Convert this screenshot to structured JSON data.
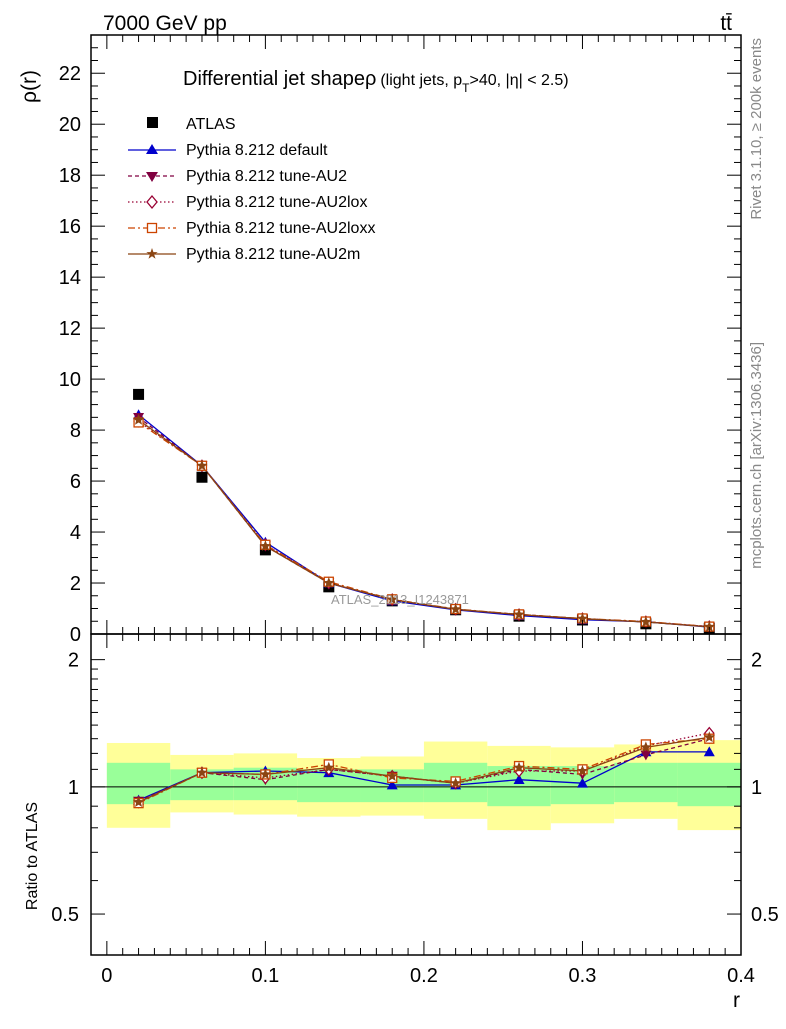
{
  "header": {
    "left": "7000 GeV pp",
    "right": "tt̄"
  },
  "side_labels": {
    "rivet": "Rivet 3.1.10, ≥ 200k events",
    "mcplots": "mcplots.cern.ch [arXiv:1306.3436]"
  },
  "watermark": "ATLAS_2013_I1243871",
  "title_main": "Differential jet shapeρ",
  "title_sub_1": "(light jets, p",
  "title_sub_T": "T",
  "title_sub_2": ">40, |η| < 2.5)",
  "colors": {
    "data": "#000000",
    "default": "#0000cc",
    "au2": "#800040",
    "au2lox": "#990033",
    "au2loxx": "#cc4400",
    "au2m": "#8b4513",
    "band_outer": "#ffff99",
    "band_inner": "#99ff99"
  },
  "chart_data": [
    {
      "type": "line",
      "panel": "main",
      "ylabel": "ρ(r)",
      "xlabel": "",
      "xlim": [
        -0.01,
        0.4
      ],
      "ylim": [
        0,
        23.5
      ],
      "yticks": [
        {
          "v": 0,
          "label": "0"
        },
        {
          "v": 2,
          "label": "2"
        },
        {
          "v": 4,
          "label": "4"
        },
        {
          "v": 6,
          "label": "6"
        },
        {
          "v": 8,
          "label": "8"
        },
        {
          "v": 10,
          "label": "10"
        },
        {
          "v": 12,
          "label": "12"
        },
        {
          "v": 14,
          "label": "14"
        },
        {
          "v": 16,
          "label": "16"
        },
        {
          "v": 18,
          "label": "18"
        },
        {
          "v": 20,
          "label": "20"
        },
        {
          "v": 22,
          "label": "22"
        }
      ],
      "legend_position": "top-left",
      "x": [
        0.02,
        0.06,
        0.1,
        0.14,
        0.18,
        0.22,
        0.26,
        0.3,
        0.34,
        0.38
      ],
      "series": [
        {
          "key": "data",
          "name": "ATLAS",
          "marker": "square",
          "style": "none",
          "values": [
            9.4,
            6.15,
            3.3,
            1.85,
            1.3,
            0.95,
            0.7,
            0.55,
            0.4,
            0.22
          ]
        },
        {
          "key": "default",
          "name": "Pythia 8.212 default",
          "marker": "triangle-up",
          "style": "solid",
          "values": [
            8.6,
            6.6,
            3.6,
            2.0,
            1.3,
            0.95,
            0.72,
            0.56,
            0.48,
            0.27
          ]
        },
        {
          "key": "au2",
          "name": "Pythia 8.212 tune-AU2",
          "marker": "triangle-down",
          "style": "dashed",
          "values": [
            8.5,
            6.6,
            3.45,
            2.0,
            1.35,
            0.97,
            0.77,
            0.6,
            0.47,
            0.29
          ]
        },
        {
          "key": "au2lox",
          "name": "Pythia 8.212 tune-AU2lox",
          "marker": "diamond-open",
          "style": "dotted",
          "values": [
            8.35,
            6.6,
            3.5,
            2.0,
            1.35,
            0.97,
            0.76,
            0.6,
            0.48,
            0.29
          ]
        },
        {
          "key": "au2loxx",
          "name": "Pythia 8.212 tune-AU2loxx",
          "marker": "square-open",
          "style": "dashdot",
          "values": [
            8.3,
            6.6,
            3.5,
            2.05,
            1.36,
            0.98,
            0.77,
            0.61,
            0.49,
            0.29
          ]
        },
        {
          "key": "au2m",
          "name": "Pythia 8.212 tune-AU2m",
          "marker": "star",
          "style": "solid",
          "values": [
            8.4,
            6.6,
            3.45,
            2.0,
            1.35,
            0.97,
            0.76,
            0.6,
            0.47,
            0.28
          ]
        }
      ]
    },
    {
      "type": "line",
      "panel": "ratio",
      "ylabel": "Ratio to ATLAS",
      "xlabel": "r",
      "xlim": [
        -0.01,
        0.4
      ],
      "ylim": [
        0.4,
        2.3
      ],
      "yscale": "log",
      "yticks": [
        {
          "v": 0.5,
          "label": "0.5"
        },
        {
          "v": 1,
          "label": "1"
        },
        {
          "v": 2,
          "label": "2"
        }
      ],
      "xticks": [
        {
          "v": 0,
          "label": "0"
        },
        {
          "v": 0.1,
          "label": "0.1"
        },
        {
          "v": 0.2,
          "label": "0.2"
        },
        {
          "v": 0.3,
          "label": "0.3"
        },
        {
          "v": 0.4,
          "label": "0.4"
        }
      ],
      "reference_line": 1,
      "bins": [
        {
          "x0": 0.0,
          "x1": 0.04,
          "outer": [
            0.8,
            1.27
          ],
          "inner": [
            0.91,
            1.14
          ]
        },
        {
          "x0": 0.04,
          "x1": 0.08,
          "outer": [
            0.87,
            1.19
          ],
          "inner": [
            0.93,
            1.1
          ]
        },
        {
          "x0": 0.08,
          "x1": 0.12,
          "outer": [
            0.86,
            1.2
          ],
          "inner": [
            0.93,
            1.11
          ]
        },
        {
          "x0": 0.12,
          "x1": 0.16,
          "outer": [
            0.85,
            1.17
          ],
          "inner": [
            0.92,
            1.1
          ]
        },
        {
          "x0": 0.16,
          "x1": 0.2,
          "outer": [
            0.855,
            1.18
          ],
          "inner": [
            0.92,
            1.1
          ]
        },
        {
          "x0": 0.2,
          "x1": 0.24,
          "outer": [
            0.84,
            1.28
          ],
          "inner": [
            0.92,
            1.14
          ]
        },
        {
          "x0": 0.24,
          "x1": 0.28,
          "outer": [
            0.79,
            1.25
          ],
          "inner": [
            0.9,
            1.12
          ]
        },
        {
          "x0": 0.28,
          "x1": 0.32,
          "outer": [
            0.82,
            1.24
          ],
          "inner": [
            0.91,
            1.12
          ]
        },
        {
          "x0": 0.32,
          "x1": 0.36,
          "outer": [
            0.84,
            1.26
          ],
          "inner": [
            0.92,
            1.14
          ]
        },
        {
          "x0": 0.36,
          "x1": 0.4,
          "outer": [
            0.79,
            1.29
          ],
          "inner": [
            0.9,
            1.14
          ]
        }
      ],
      "x": [
        0.02,
        0.06,
        0.1,
        0.14,
        0.18,
        0.22,
        0.26,
        0.3,
        0.34,
        0.38
      ],
      "series": [
        {
          "key": "default",
          "values": [
            0.93,
            1.08,
            1.09,
            1.08,
            1.01,
            1.01,
            1.04,
            1.02,
            1.21,
            1.21
          ]
        },
        {
          "key": "au2",
          "values": [
            0.925,
            1.08,
            1.04,
            1.1,
            1.06,
            1.02,
            1.1,
            1.07,
            1.19,
            1.3
          ]
        },
        {
          "key": "au2lox",
          "values": [
            0.92,
            1.08,
            1.05,
            1.1,
            1.06,
            1.02,
            1.09,
            1.09,
            1.25,
            1.34
          ]
        },
        {
          "key": "au2loxx",
          "values": [
            0.915,
            1.08,
            1.07,
            1.13,
            1.05,
            1.03,
            1.12,
            1.1,
            1.26,
            1.3
          ]
        },
        {
          "key": "au2m",
          "values": [
            0.92,
            1.08,
            1.07,
            1.11,
            1.06,
            1.02,
            1.11,
            1.09,
            1.24,
            1.31
          ]
        }
      ]
    }
  ]
}
